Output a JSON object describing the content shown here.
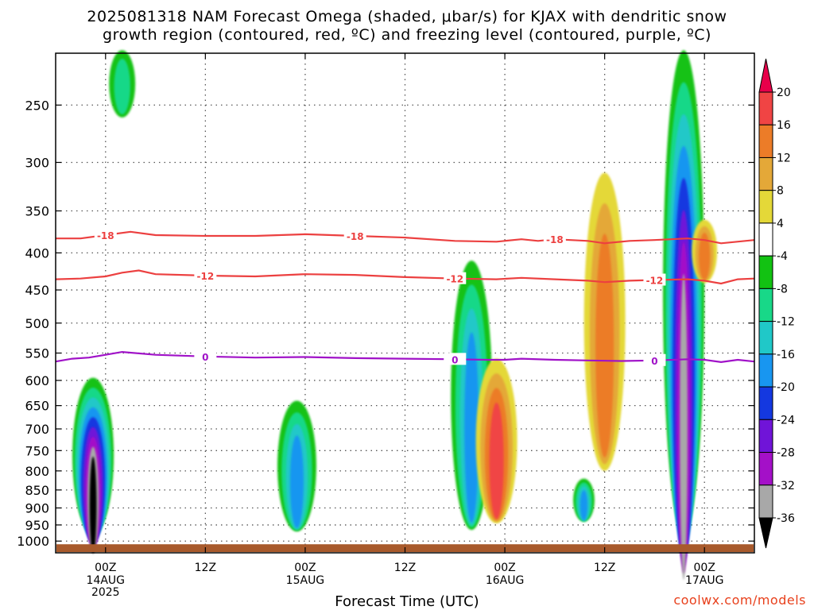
{
  "title_line1": "2025081318 NAM Forecast Omega (shaded, μbar/s) for KJAX with dendritic snow",
  "title_line2": "growth region (contoured, red, ºC) and freezing level (contoured, purple, ºC)",
  "xaxis_label": "Forecast Time (UTC)",
  "credit": "coolwx.com/models",
  "chart_data": {
    "type": "heatmap",
    "title": "2025081318 NAM Forecast Omega (shaded, μbar/s) for KJAX with dendritic snow growth region (contoured, red, ºC) and freezing level (contoured, purple, ºC)",
    "xlabel": "Forecast Time (UTC)",
    "ylabel": "",
    "y_axis": "pressure (hPa), log scale, reversed",
    "ylim": [
      1000,
      200
    ],
    "yticks": [
      250,
      300,
      350,
      400,
      450,
      500,
      550,
      600,
      650,
      700,
      750,
      800,
      850,
      900,
      950,
      1000
    ],
    "xlim_hours": [
      -6,
      78
    ],
    "xticks": [
      {
        "hour": 0,
        "label": "00Z",
        "date": "14AUG",
        "year": "2025"
      },
      {
        "hour": 12,
        "label": "12Z",
        "date": "",
        "year": ""
      },
      {
        "hour": 24,
        "label": "00Z",
        "date": "15AUG",
        "year": ""
      },
      {
        "hour": 36,
        "label": "12Z",
        "date": "",
        "year": ""
      },
      {
        "hour": 48,
        "label": "00Z",
        "date": "16AUG",
        "year": ""
      },
      {
        "hour": 60,
        "label": "12Z",
        "date": "",
        "year": ""
      },
      {
        "hour": 72,
        "label": "00Z",
        "date": "17AUG",
        "year": ""
      }
    ],
    "grid": true,
    "colorbar": {
      "ticks": [
        "20",
        "16",
        "12",
        "8",
        "4",
        "-4",
        "-8",
        "-12",
        "-16",
        "-20",
        "-24",
        "-28",
        "-32",
        "-36"
      ],
      "colors": [
        "#e8004a",
        "#f04444",
        "#ec7c28",
        "#e4a838",
        "#e4d838",
        "#ffffff",
        "#12c212",
        "#18d888",
        "#20c8c8",
        "#1896f0",
        "#1438e0",
        "#7014d8",
        "#a410c8",
        "#a8a8a8",
        "#000000"
      ]
    },
    "contours": [
      {
        "label": "-18",
        "color": "#ec4040",
        "points": [
          [
            -6,
            382
          ],
          [
            -3,
            382
          ],
          [
            0,
            378
          ],
          [
            3,
            374
          ],
          [
            6,
            378
          ],
          [
            12,
            379
          ],
          [
            18,
            379
          ],
          [
            24,
            377
          ],
          [
            30,
            379
          ],
          [
            36,
            381
          ],
          [
            42,
            385
          ],
          [
            47,
            386
          ],
          [
            50,
            383
          ],
          [
            52,
            385
          ],
          [
            54,
            383
          ],
          [
            58,
            385
          ],
          [
            60,
            388
          ],
          [
            63,
            385
          ],
          [
            66,
            384
          ],
          [
            70,
            382
          ],
          [
            72,
            384
          ],
          [
            74,
            388
          ],
          [
            78,
            384
          ]
        ]
      },
      {
        "label": "-12",
        "color": "#ec4040",
        "points": [
          [
            -6,
            435
          ],
          [
            -3,
            434
          ],
          [
            0,
            431
          ],
          [
            2,
            426
          ],
          [
            4,
            423
          ],
          [
            6,
            428
          ],
          [
            12,
            430
          ],
          [
            18,
            431
          ],
          [
            24,
            428
          ],
          [
            30,
            429
          ],
          [
            36,
            432
          ],
          [
            42,
            434
          ],
          [
            47,
            435
          ],
          [
            50,
            433
          ],
          [
            54,
            435
          ],
          [
            58,
            437
          ],
          [
            60,
            439
          ],
          [
            63,
            437
          ],
          [
            66,
            436
          ],
          [
            70,
            435
          ],
          [
            72,
            437
          ],
          [
            74,
            441
          ],
          [
            76,
            435
          ],
          [
            78,
            434
          ]
        ]
      },
      {
        "label": "0",
        "color": "#a012c8",
        "points": [
          [
            -6,
            565
          ],
          [
            -4,
            560
          ],
          [
            -2,
            558
          ],
          [
            0,
            553
          ],
          [
            2,
            548
          ],
          [
            6,
            553
          ],
          [
            12,
            556
          ],
          [
            18,
            558
          ],
          [
            24,
            557
          ],
          [
            30,
            559
          ],
          [
            36,
            560
          ],
          [
            42,
            561
          ],
          [
            46,
            562
          ],
          [
            48,
            562
          ],
          [
            50,
            560
          ],
          [
            54,
            562
          ],
          [
            58,
            563
          ],
          [
            62,
            564
          ],
          [
            66,
            563
          ],
          [
            70,
            561
          ],
          [
            72,
            562
          ],
          [
            74,
            566
          ],
          [
            76,
            562
          ],
          [
            78,
            565
          ]
        ]
      }
    ],
    "omega_features": [
      {
        "hour": -1.5,
        "p_top": 595,
        "p_bottom": 975,
        "min": -36
      },
      {
        "hour": 2,
        "p_top": 210,
        "p_bottom": 260,
        "min": -8
      },
      {
        "hour": 23,
        "p_top": 640,
        "p_bottom": 970,
        "min": -16
      },
      {
        "hour": 44,
        "p_top": 410,
        "p_bottom": 965,
        "min": -16
      },
      {
        "hour": 47,
        "p_top": 560,
        "p_bottom": 945,
        "max": 16
      },
      {
        "hour": 60,
        "p_top": 310,
        "p_bottom": 800,
        "max": 12
      },
      {
        "hour": 57.5,
        "p_top": 820,
        "p_bottom": 940,
        "min": -16
      },
      {
        "hour": 69.5,
        "p_top": 210,
        "p_bottom": 975,
        "min": -32
      },
      {
        "hour": 72,
        "p_top": 360,
        "p_bottom": 440,
        "max": 12
      }
    ]
  }
}
